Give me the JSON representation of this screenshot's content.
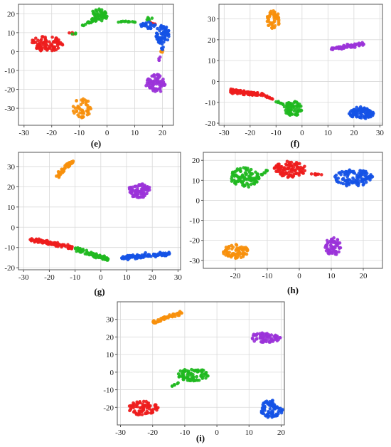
{
  "colors": {
    "red": "#ee1c1c",
    "green": "#1fb81f",
    "orange": "#f7900c",
    "blue": "#1552e6",
    "purple": "#9b33d9"
  },
  "chart_data": [
    {
      "type": "scatter",
      "label": "(e)",
      "xlim": [
        -32,
        24
      ],
      "ylim": [
        -39,
        25
      ],
      "xticks": [
        -30,
        -20,
        -10,
        0,
        10,
        20
      ],
      "yticks": [
        -30,
        -20,
        -10,
        0,
        10,
        20
      ],
      "grid": true,
      "clusters": [
        {
          "color": "red",
          "n": 90,
          "shape": "ellipse",
          "cx": -22,
          "cy": 4,
          "rx": 6,
          "ry": 4
        },
        {
          "color": "red",
          "n": 4,
          "shape": "ellipse",
          "cx": -13,
          "cy": 9.5,
          "rx": 1,
          "ry": 0.6
        },
        {
          "color": "red",
          "n": 6,
          "shape": "ellipse",
          "cx": 17,
          "cy": 15.5,
          "rx": 1.5,
          "ry": 1.5
        },
        {
          "color": "green",
          "n": 55,
          "shape": "ellipse",
          "cx": -3,
          "cy": 19,
          "rx": 3,
          "ry": 3.5
        },
        {
          "color": "green",
          "n": 20,
          "shape": "line",
          "x0": -9,
          "y0": 14,
          "x1": -4,
          "y1": 17,
          "w": 1.5
        },
        {
          "color": "green",
          "n": 12,
          "shape": "line",
          "x0": 4,
          "y0": 16,
          "x1": 11,
          "y1": 15.5,
          "w": 0.8
        },
        {
          "color": "green",
          "n": 6,
          "shape": "ellipse",
          "cx": 15,
          "cy": 17,
          "rx": 1.5,
          "ry": 1.2
        },
        {
          "color": "green",
          "n": 3,
          "shape": "ellipse",
          "cx": -12,
          "cy": 9.5,
          "rx": 0.8,
          "ry": 0.5
        },
        {
          "color": "orange",
          "n": 50,
          "shape": "ellipse",
          "cx": -9,
          "cy": -30,
          "rx": 3.5,
          "ry": 5
        },
        {
          "color": "orange",
          "n": 4,
          "shape": "ellipse",
          "cx": 20,
          "cy": 0.5,
          "rx": 0.6,
          "ry": 1.2
        },
        {
          "color": "blue",
          "n": 70,
          "shape": "ellipse",
          "cx": 20,
          "cy": 9,
          "rx": 2.5,
          "ry": 5
        },
        {
          "color": "blue",
          "n": 25,
          "shape": "ellipse",
          "cx": 15,
          "cy": 14,
          "rx": 3,
          "ry": 2
        },
        {
          "color": "blue",
          "n": 4,
          "shape": "ellipse",
          "cx": 20,
          "cy": 2,
          "rx": 0.6,
          "ry": 1
        },
        {
          "color": "purple",
          "n": 75,
          "shape": "ellipse",
          "cx": 17.5,
          "cy": -17,
          "rx": 3.5,
          "ry": 5
        },
        {
          "color": "purple",
          "n": 4,
          "shape": "ellipse",
          "cx": 19,
          "cy": -4,
          "rx": 0.8,
          "ry": 1.5
        }
      ]
    },
    {
      "type": "scatter",
      "label": "(f)",
      "xlim": [
        -32,
        31
      ],
      "ylim": [
        -21,
        37
      ],
      "xticks": [
        -30,
        -20,
        -10,
        0,
        10,
        20,
        30
      ],
      "yticks": [
        -20,
        -10,
        0,
        10,
        20,
        30
      ],
      "grid": true,
      "clusters": [
        {
          "color": "red",
          "n": 90,
          "shape": "line",
          "x0": -28,
          "y0": -4.5,
          "x1": -15,
          "y1": -6.5,
          "w": 2
        },
        {
          "color": "red",
          "n": 10,
          "shape": "line",
          "x0": -15,
          "y0": -6.5,
          "x1": -11,
          "y1": -8.5,
          "w": 0.8
        },
        {
          "color": "green",
          "n": 75,
          "shape": "ellipse",
          "cx": -3.5,
          "cy": -13,
          "rx": 3.5,
          "ry": 3.5
        },
        {
          "color": "green",
          "n": 8,
          "shape": "line",
          "x0": -10,
          "y0": -9.5,
          "x1": -7,
          "y1": -11,
          "w": 0.6
        },
        {
          "color": "orange",
          "n": 55,
          "shape": "ellipse",
          "cx": -11,
          "cy": 29.5,
          "rx": 2.5,
          "ry": 4.5
        },
        {
          "color": "purple",
          "n": 75,
          "shape": "line",
          "x0": 11,
          "y0": 15.5,
          "x1": 24,
          "y1": 18,
          "w": 1.6
        },
        {
          "color": "blue",
          "n": 100,
          "shape": "ellipse",
          "cx": 23,
          "cy": -15,
          "rx": 5,
          "ry": 3
        }
      ]
    },
    {
      "type": "scatter",
      "label": "(g)",
      "xlim": [
        -32,
        31
      ],
      "ylim": [
        -21,
        37
      ],
      "xticks": [
        -30,
        -20,
        -10,
        0,
        10,
        20,
        30
      ],
      "yticks": [
        -20,
        -10,
        0,
        10,
        20,
        30
      ],
      "grid": true,
      "clusters": [
        {
          "color": "red",
          "n": 95,
          "shape": "line",
          "x0": -28,
          "y0": -6,
          "x1": -11,
          "y1": -10,
          "w": 1.8
        },
        {
          "color": "green",
          "n": 85,
          "shape": "line",
          "x0": -10,
          "y0": -10.5,
          "x1": 3,
          "y1": -16,
          "w": 1.8
        },
        {
          "color": "orange",
          "n": 55,
          "shape": "line",
          "x0": -17,
          "y0": 25,
          "x1": -11,
          "y1": 33,
          "w": 1.8
        },
        {
          "color": "purple",
          "n": 80,
          "shape": "ellipse",
          "cx": 15,
          "cy": 18,
          "rx": 4.5,
          "ry": 3.5
        },
        {
          "color": "blue",
          "n": 110,
          "shape": "line",
          "x0": 8,
          "y0": -15,
          "x1": 27,
          "y1": -13,
          "w": 2
        }
      ]
    },
    {
      "type": "scatter",
      "label": "(h)",
      "xlim": [
        -30,
        26
      ],
      "ylim": [
        -34,
        24
      ],
      "xticks": [
        -20,
        -10,
        0,
        10,
        20
      ],
      "yticks": [
        -30,
        -20,
        -10,
        0,
        10,
        20
      ],
      "grid": true,
      "clusters": [
        {
          "color": "green",
          "n": 95,
          "shape": "ellipse",
          "cx": -17,
          "cy": 11.5,
          "rx": 4.5,
          "ry": 5
        },
        {
          "color": "green",
          "n": 10,
          "shape": "line",
          "x0": -12,
          "y0": 12.5,
          "x1": -9,
          "y1": 16,
          "w": 0.8
        },
        {
          "color": "red",
          "n": 100,
          "shape": "ellipse",
          "cx": -3,
          "cy": 15.5,
          "rx": 5,
          "ry": 4
        },
        {
          "color": "red",
          "n": 8,
          "shape": "line",
          "x0": 3,
          "y0": 13,
          "x1": 7,
          "y1": 13,
          "w": 0.6
        },
        {
          "color": "blue",
          "n": 110,
          "shape": "ellipse",
          "cx": 17,
          "cy": 11,
          "rx": 6,
          "ry": 4.5
        },
        {
          "color": "orange",
          "n": 75,
          "shape": "ellipse",
          "cx": -20,
          "cy": -25.5,
          "rx": 4,
          "ry": 3.5
        },
        {
          "color": "purple",
          "n": 65,
          "shape": "ellipse",
          "cx": 10.5,
          "cy": -23,
          "rx": 2.5,
          "ry": 4.5
        }
      ]
    },
    {
      "type": "scatter",
      "label": "(i)",
      "xlim": [
        -31,
        21
      ],
      "ylim": [
        -30,
        40
      ],
      "xticks": [
        -30,
        -20,
        -10,
        0,
        10,
        20
      ],
      "yticks": [
        -20,
        -10,
        0,
        10,
        20,
        30
      ],
      "grid": true,
      "clusters": [
        {
          "color": "orange",
          "n": 65,
          "shape": "line",
          "x0": -20,
          "y0": 28,
          "x1": -11,
          "y1": 34,
          "w": 2
        },
        {
          "color": "purple",
          "n": 70,
          "shape": "ellipse",
          "cx": 15,
          "cy": 19.5,
          "rx": 5,
          "ry": 3
        },
        {
          "color": "green",
          "n": 80,
          "shape": "ellipse",
          "cx": -7.5,
          "cy": -1.5,
          "rx": 5,
          "ry": 3.5
        },
        {
          "color": "green",
          "n": 6,
          "shape": "line",
          "x0": -14,
          "y0": -8,
          "x1": -12,
          "y1": -6,
          "w": 0.5
        },
        {
          "color": "red",
          "n": 80,
          "shape": "ellipse",
          "cx": -23,
          "cy": -20.5,
          "rx": 5,
          "ry": 4
        },
        {
          "color": "blue",
          "n": 80,
          "shape": "ellipse",
          "cx": 17,
          "cy": -21,
          "rx": 3.5,
          "ry": 5
        }
      ]
    }
  ]
}
